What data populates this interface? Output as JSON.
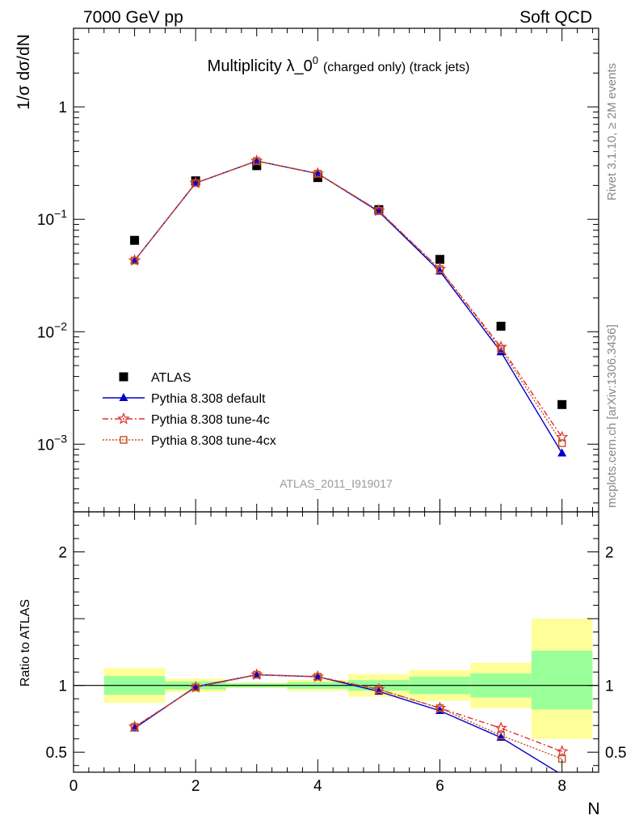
{
  "header": {
    "left": "7000 GeV pp",
    "right": "Soft QCD"
  },
  "side_labels": {
    "rivet": "Rivet 3.1.10, ≥ 2M events",
    "mcplots": "mcplots.cern.ch [arXiv:1306.3436]"
  },
  "analysis_tag": "ATLAS_2011_I919017",
  "chart_data": [
    {
      "type": "scatter",
      "panel": "main",
      "title_main": "Multiplicity λ_0",
      "title_sup": "0",
      "title_sub": "(charged only) (track jets)",
      "ylabel": "1/σ dσ/dN",
      "xlabel": "",
      "xlim": [
        0,
        8.6
      ],
      "ylim": [
        0.00025,
        5
      ],
      "y_scale": "log",
      "y_ticks": [
        {
          "value": 1,
          "mant": "1",
          "exp": ""
        },
        {
          "value": 0.1,
          "mant": "10",
          "exp": "−1"
        },
        {
          "value": 0.01,
          "mant": "10",
          "exp": "−2"
        },
        {
          "value": 0.001,
          "mant": "10",
          "exp": "−3"
        }
      ],
      "x": [
        1,
        2,
        3,
        4,
        5,
        6,
        7,
        8
      ],
      "series": [
        {
          "name": "ATLAS",
          "color": "#000000",
          "marker": "square-filled",
          "line": "none",
          "values": [
            0.065,
            0.22,
            0.3,
            0.235,
            0.122,
            0.044,
            0.0112,
            0.00225
          ]
        },
        {
          "name": "Pythia 8.308 default",
          "color": "#0000cc",
          "marker": "triangle-filled",
          "line": "solid",
          "values": [
            0.043,
            0.21,
            0.33,
            0.255,
            0.117,
            0.0345,
            0.0066,
            0.00083
          ]
        },
        {
          "name": "Pythia 8.308 tune-4c",
          "color": "#e03030",
          "marker": "star-open",
          "line": "dashdot",
          "values": [
            0.043,
            0.21,
            0.33,
            0.255,
            0.119,
            0.036,
            0.0073,
            0.00115
          ]
        },
        {
          "name": "Pythia 8.308 tune-4cx",
          "color": "#c05020",
          "marker": "square-open",
          "line": "dotted",
          "values": [
            0.043,
            0.21,
            0.33,
            0.255,
            0.119,
            0.036,
            0.007,
            0.00102
          ]
        }
      ],
      "legend_position": "lower-left"
    },
    {
      "type": "line",
      "panel": "ratio",
      "ylabel": "Ratio to ATLAS",
      "xlabel": "N",
      "xlim": [
        0,
        8.6
      ],
      "ylim": [
        0.35,
        2.3
      ],
      "x_ticks": [
        0,
        2,
        4,
        6,
        8
      ],
      "y_ticks": [
        "0.5",
        "1",
        "2"
      ],
      "x": [
        1,
        2,
        3,
        4,
        5,
        6,
        7,
        8
      ],
      "bands": {
        "bins": [
          [
            0.5,
            1.5
          ],
          [
            1.5,
            2.5
          ],
          [
            2.5,
            3.5
          ],
          [
            3.5,
            4.5
          ],
          [
            4.5,
            5.5
          ],
          [
            5.5,
            6.5
          ],
          [
            6.5,
            7.5
          ],
          [
            7.5,
            8.5
          ]
        ],
        "inner": [
          [
            0.93,
            1.07
          ],
          [
            0.97,
            1.03
          ],
          [
            0.985,
            1.015
          ],
          [
            0.975,
            1.025
          ],
          [
            0.96,
            1.04
          ],
          [
            0.935,
            1.065
          ],
          [
            0.91,
            1.09
          ],
          [
            0.82,
            1.26
          ]
        ],
        "outer": [
          [
            0.87,
            1.13
          ],
          [
            0.95,
            1.05
          ],
          [
            0.98,
            1.02
          ],
          [
            0.96,
            1.04
          ],
          [
            0.915,
            1.085
          ],
          [
            0.885,
            1.115
          ],
          [
            0.83,
            1.17
          ],
          [
            0.6,
            1.5
          ]
        ],
        "inner_color": "#99ff99",
        "outer_color": "#ffff99"
      },
      "series": [
        {
          "name": "Pythia 8.308 default",
          "color": "#0000cc",
          "marker": "triangle-filled",
          "line": "solid",
          "values": [
            0.68,
            0.99,
            1.08,
            1.065,
            0.955,
            0.81,
            0.61,
            0.33
          ]
        },
        {
          "name": "Pythia 8.308 tune-4c",
          "color": "#e03030",
          "marker": "star-open",
          "line": "dashdot",
          "values": [
            0.69,
            0.985,
            1.08,
            1.065,
            0.97,
            0.83,
            0.68,
            0.505
          ]
        },
        {
          "name": "Pythia 8.308 tune-4cx",
          "color": "#c05020",
          "marker": "square-open",
          "line": "dotted",
          "values": [
            0.69,
            0.985,
            1.08,
            1.065,
            0.97,
            0.83,
            0.625,
            0.45
          ]
        }
      ],
      "reference_line": 1
    }
  ]
}
